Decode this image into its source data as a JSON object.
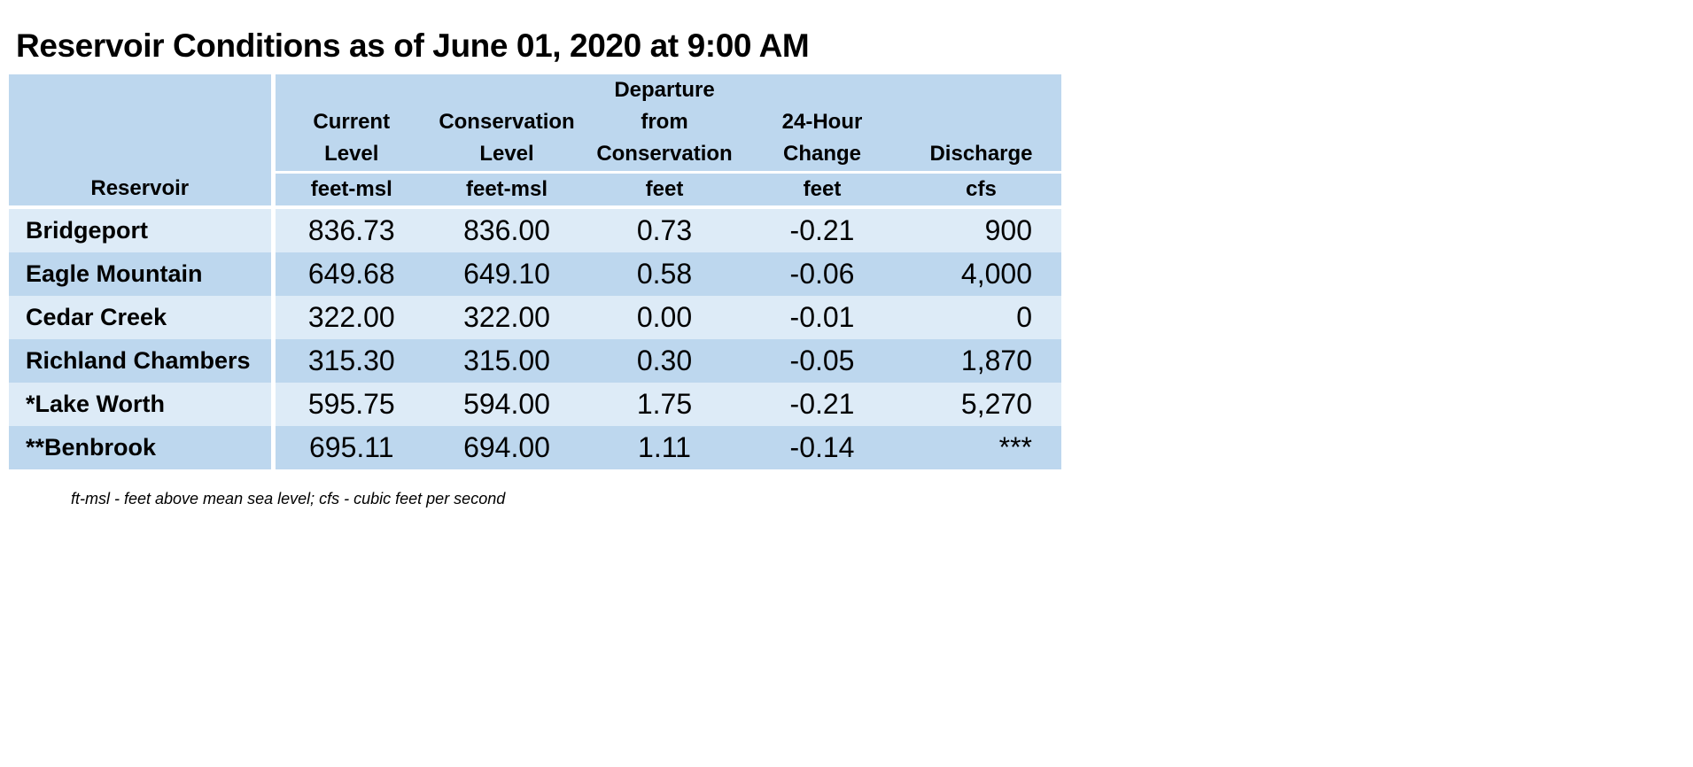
{
  "title": "Reservoir Conditions as of June 01, 2020 at 9:00 AM",
  "table": {
    "columns": [
      {
        "label_lines": [
          "",
          "",
          "",
          "Reservoir"
        ],
        "unit": ""
      },
      {
        "label_lines": [
          "",
          "Current",
          "Level"
        ],
        "unit": "feet-msl"
      },
      {
        "label_lines": [
          "",
          "Conservation",
          "Level"
        ],
        "unit": "feet-msl"
      },
      {
        "label_lines": [
          "Departure",
          "from",
          "Conservation"
        ],
        "unit": "feet"
      },
      {
        "label_lines": [
          "",
          "24-Hour",
          "Change"
        ],
        "unit": "feet"
      },
      {
        "label_lines": [
          "",
          "",
          "Discharge"
        ],
        "unit": "cfs"
      }
    ],
    "rows": [
      {
        "reservoir": "Bridgeport",
        "current_level": "836.73",
        "conservation_level": "836.00",
        "departure": "0.73",
        "change_24h": "-0.21",
        "discharge": "900"
      },
      {
        "reservoir": "Eagle Mountain",
        "current_level": "649.68",
        "conservation_level": "649.10",
        "departure": "0.58",
        "change_24h": "-0.06",
        "discharge": "4,000"
      },
      {
        "reservoir": "Cedar Creek",
        "current_level": "322.00",
        "conservation_level": "322.00",
        "departure": "0.00",
        "change_24h": "-0.01",
        "discharge": "0"
      },
      {
        "reservoir": "Richland Chambers",
        "current_level": "315.30",
        "conservation_level": "315.00",
        "departure": "0.30",
        "change_24h": "-0.05",
        "discharge": "1,870"
      },
      {
        "reservoir": "*Lake Worth",
        "current_level": "595.75",
        "conservation_level": "594.00",
        "departure": "1.75",
        "change_24h": "-0.21",
        "discharge": "5,270"
      },
      {
        "reservoir": "**Benbrook",
        "current_level": "695.11",
        "conservation_level": "694.00",
        "departure": "1.11",
        "change_24h": "-0.14",
        "discharge": "***"
      }
    ]
  },
  "footnote": "ft-msl - feet above mean sea level; cfs - cubic feet per second",
  "colors": {
    "header_background": "#bdd7ee",
    "row_light": "#ddebf7",
    "row_dark": "#bdd7ee",
    "divider": "#ffffff"
  }
}
